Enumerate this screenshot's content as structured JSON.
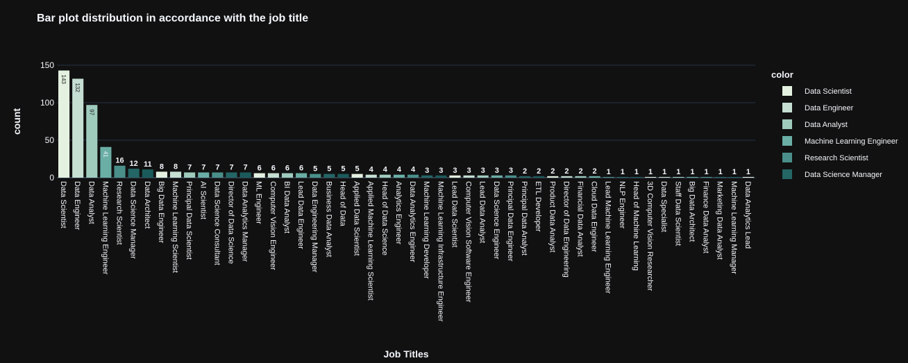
{
  "chart_data": {
    "type": "bar",
    "title": "Bar plot distribution in accordance with the job title",
    "xlabel": "Job Titles",
    "ylabel": "count",
    "ylim": [
      0,
      150
    ],
    "yticks": [
      0,
      50,
      100,
      150
    ],
    "grid": true,
    "legend_title": "color",
    "legend_position": "right",
    "categories": [
      "Data Scientist",
      "Data Engineer",
      "Data Analyst",
      "Machine Learning Engineer",
      "Research Scientist",
      "Data Science Manager",
      "Data Architect",
      "Big Data Engineer",
      "Machine Learning Scientist",
      "Principal Data Scientist",
      "AI Scientist",
      "Data Science Consultant",
      "Director of Data Science",
      "Data Analytics Manager",
      "ML Engineer",
      "Computer Vision Engineer",
      "BI Data Analyst",
      "Lead Data Engineer",
      "Data Engineering Manager",
      "Business Data Analyst",
      "Head of Data",
      "Applied Data Scientist",
      "Applied Machine Learning Scientist",
      "Head of Data Science",
      "Analytics Engineer",
      "Data Analytics Engineer",
      "Machine Learning Developer",
      "Machine Learning Infrastructure Engineer",
      "Lead Data Scientist",
      "Computer Vision Software Engineer",
      "Lead Data Analyst",
      "Data Science Engineer",
      "Principal Data Engineer",
      "Principal Data Analyst",
      "ETL Developer",
      "Product Data Analyst",
      "Director of Data Engineering",
      "Financial Data Analyst",
      "Cloud Data Engineer",
      "Lead Machine Learning Engineer",
      "NLP Engineer",
      "Head of Machine Learning",
      "3D Computer Vision Researcher",
      "Data Specialist",
      "Staff Data Scientist",
      "Big Data Architect",
      "Finance Data Analyst",
      "Marketing Data Analyst",
      "Machine Learning Manager",
      "Data Analytics Lead"
    ],
    "values": [
      143,
      132,
      97,
      41,
      16,
      12,
      11,
      8,
      8,
      7,
      7,
      7,
      7,
      7,
      6,
      6,
      6,
      6,
      5,
      5,
      5,
      5,
      4,
      4,
      4,
      4,
      3,
      3,
      3,
      3,
      3,
      3,
      3,
      2,
      2,
      2,
      2,
      2,
      2,
      1,
      1,
      1,
      1,
      1,
      1,
      1,
      1,
      1,
      1,
      1
    ],
    "value_labels": [
      "143",
      "132",
      "97",
      "41",
      "16",
      "12",
      "11",
      "8",
      "8",
      "7",
      "7",
      "7",
      "7",
      "7",
      "6",
      "6",
      "6",
      "6",
      "5",
      "5",
      "5",
      "5",
      "4",
      "4",
      "4",
      "4",
      "3",
      "3",
      "3",
      "3",
      "3",
      "3",
      "3",
      "2",
      "2",
      "2",
      "2",
      "2",
      "2",
      "1",
      "1",
      "1",
      "1",
      "1",
      "1",
      "1",
      "1",
      "1",
      "1",
      "1"
    ],
    "legend": [
      {
        "name": "Data Scientist",
        "color": "#e4f1e1"
      },
      {
        "name": "Data Engineer",
        "color": "#c5dfd3"
      },
      {
        "name": "Data Analyst",
        "color": "#9fcbbd"
      },
      {
        "name": "Machine Learning Engineer",
        "color": "#6aaea5"
      },
      {
        "name": "Research Scientist",
        "color": "#4a8f8a"
      },
      {
        "name": "Data Science Manager",
        "color": "#246565"
      }
    ],
    "colors": [
      "#e4f1e1",
      "#c5dfd3",
      "#9fcbbd",
      "#6aaea5",
      "#4a8f8a",
      "#246565",
      "#1b5a5b",
      "#e4f1e1",
      "#c5dfd3",
      "#9fcbbd",
      "#6aaea5",
      "#4a8f8a",
      "#246565",
      "#1b5a5b",
      "#e4f1e1",
      "#c5dfd3",
      "#9fcbbd",
      "#6aaea5",
      "#4a8f8a",
      "#246565",
      "#1b5a5b",
      "#e4f1e1",
      "#c5dfd3",
      "#9fcbbd",
      "#6aaea5",
      "#4a8f8a",
      "#246565",
      "#1b5a5b",
      "#e4f1e1",
      "#c5dfd3",
      "#9fcbbd",
      "#6aaea5",
      "#4a8f8a",
      "#246565",
      "#1b5a5b",
      "#e4f1e1",
      "#c5dfd3",
      "#9fcbbd",
      "#6aaea5",
      "#4a8f8a",
      "#246565",
      "#1b5a5b",
      "#e4f1e1",
      "#c5dfd3",
      "#9fcbbd",
      "#6aaea5",
      "#4a8f8a",
      "#246565",
      "#1b5a5b",
      "#e4f1e1"
    ]
  }
}
